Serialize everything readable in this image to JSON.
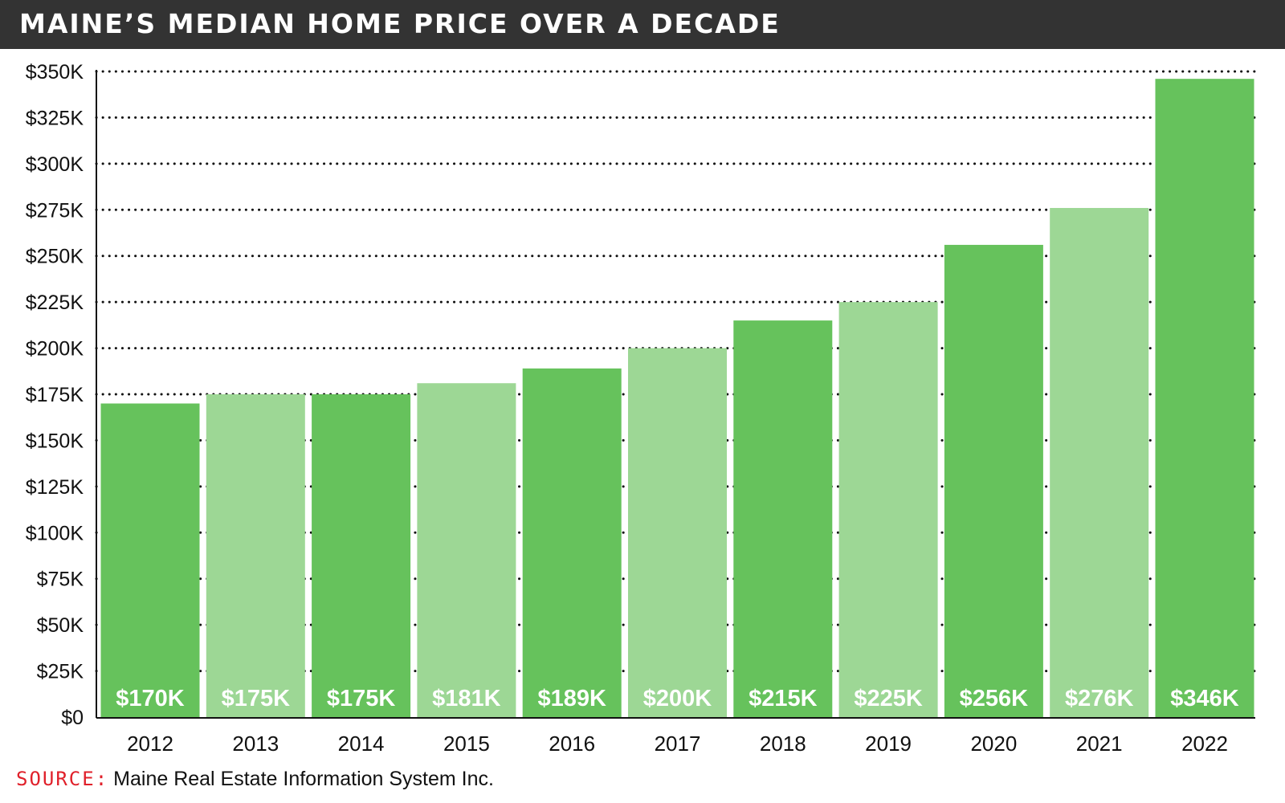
{
  "header": {
    "title": "MAINE’S MEDIAN HOME PRICE OVER A DECADE"
  },
  "source": {
    "label": "SOURCE:",
    "text": "Maine Real Estate Information System Inc."
  },
  "colors": {
    "header_bg": "#333333",
    "bar_dark": "#66c25c",
    "bar_light": "#9dd795",
    "source_label": "#e0202a",
    "gridline": "#111111"
  },
  "chart_data": {
    "type": "bar",
    "title": "MAINE’S MEDIAN HOME PRICE OVER A DECADE",
    "xlabel": "",
    "ylabel": "",
    "categories": [
      "2012",
      "2013",
      "2014",
      "2015",
      "2016",
      "2017",
      "2018",
      "2019",
      "2020",
      "2021",
      "2022"
    ],
    "values": [
      170,
      175,
      175,
      181,
      189,
      200,
      215,
      225,
      256,
      276,
      346
    ],
    "value_labels": [
      "$170K",
      "$175K",
      "$175K",
      "$181K",
      "$189K",
      "$200K",
      "$215K",
      "$225K",
      "$256K",
      "$276K",
      "$346K"
    ],
    "bar_shades": [
      "dark",
      "light",
      "dark",
      "light",
      "dark",
      "light",
      "dark",
      "light",
      "dark",
      "light",
      "dark"
    ],
    "ylim": [
      0,
      350
    ],
    "yticks": [
      0,
      25,
      50,
      75,
      100,
      125,
      150,
      175,
      200,
      225,
      250,
      275,
      300,
      325,
      350
    ],
    "ytick_labels": [
      "$0",
      "$25K",
      "$50K",
      "$75K",
      "$100K",
      "$125K",
      "$150K",
      "$175K",
      "$200K",
      "$225K",
      "$250K",
      "$275K",
      "$300K",
      "$325K",
      "$350K"
    ],
    "grid": true,
    "grid_style": "dotted",
    "legend": false
  }
}
